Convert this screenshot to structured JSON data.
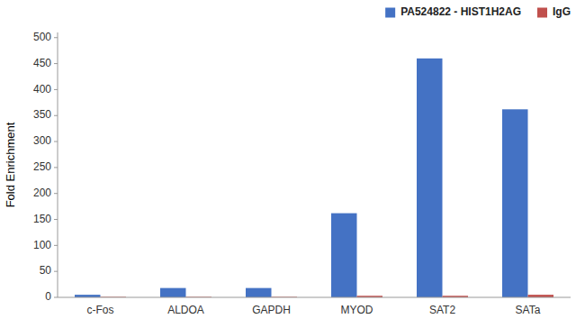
{
  "chart_data": {
    "type": "bar",
    "categories": [
      "c-Fos",
      "ALDOA",
      "GAPDH",
      "MYOD",
      "SAT2",
      "SATa"
    ],
    "series": [
      {
        "name": "PA524822 - HIST1H2AG",
        "color": "#4472C4",
        "values": [
          5,
          18,
          18,
          162,
          460,
          362
        ]
      },
      {
        "name": "IgG",
        "color": "#C0504D",
        "values": [
          1,
          1,
          1,
          3,
          3,
          5
        ]
      }
    ],
    "ylabel": "Fold Enrichment",
    "ylim": [
      0,
      510
    ],
    "yticks": [
      0,
      50,
      100,
      150,
      200,
      250,
      300,
      350,
      400,
      450,
      500
    ],
    "grid": false,
    "legend": "upper right"
  }
}
